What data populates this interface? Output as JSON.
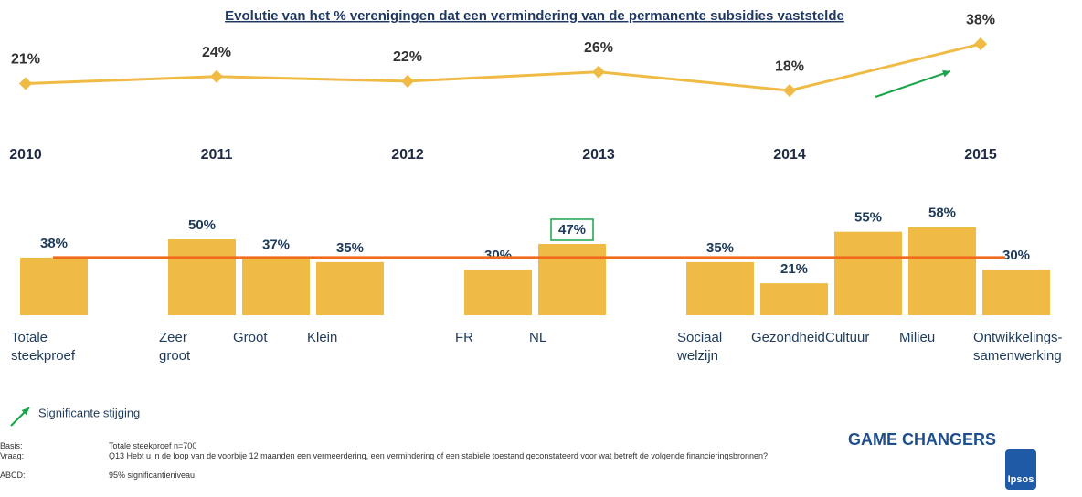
{
  "chart_data": [
    {
      "type": "line",
      "title": "Evolutie van het % verenigingen dat een vermindering van de permanente subsidies vaststelde",
      "categories": [
        "2010",
        "2011",
        "2012",
        "2013",
        "2014",
        "2015"
      ],
      "values": [
        21,
        24,
        22,
        26,
        18,
        38
      ],
      "value_labels": [
        "21%",
        "24%",
        "22%",
        "26%",
        "18%",
        "38%"
      ],
      "color": "#f0bb45"
    },
    {
      "type": "bar",
      "categories": [
        "Totale\nsteekproef",
        null,
        "Zeer\ngroot",
        "Groot",
        "Klein",
        null,
        "FR",
        "NL",
        null,
        "Sociaal\nwelzijn",
        "Gezondheid",
        "Cultuur",
        "Milieu",
        "Ontwikkelings-\nsamenwerking"
      ],
      "values": [
        38,
        null,
        50,
        37,
        35,
        null,
        30,
        47,
        null,
        35,
        21,
        55,
        58,
        30
      ],
      "value_labels": [
        "38%",
        null,
        "50%",
        "37%",
        "35%",
        null,
        "30%",
        "47%",
        null,
        "35%",
        "21%",
        "55%",
        "58%",
        "30%"
      ],
      "color": "#f0bb45",
      "highlight": 7,
      "reference_line": {
        "value": 38,
        "color": "#f26b1d"
      }
    }
  ],
  "legend": {
    "significant": "Significante stijging",
    "color": "#1aa34a"
  },
  "footnotes": [
    [
      "Basis:",
      "Totale steekproef n=700"
    ],
    [
      "Vraag:",
      "Q13 Hebt u in de loop van de voorbije 12 maanden een vermeerdering, een vermindering of een stabiele toestand geconstateerd voor wat betreft de volgende financieringsbronnen?"
    ],
    [
      "ABCD:",
      "95% significantieniveau"
    ]
  ],
  "logos": [
    "GAME CHANGERS",
    "Ipsos"
  ]
}
